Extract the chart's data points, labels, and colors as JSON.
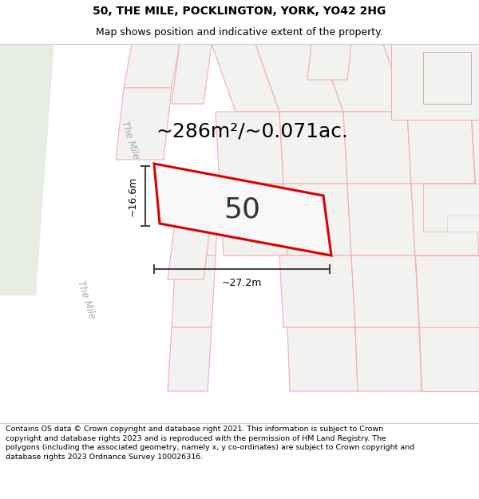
{
  "title_line1": "50, THE MILE, POCKLINGTON, YORK, YO42 2HG",
  "title_line2": "Map shows position and indicative extent of the property.",
  "area_text": "~286m²/~0.071ac.",
  "property_number": "50",
  "dim_width": "~27.2m",
  "dim_height": "~16.6m",
  "road_label_top": "The Mile",
  "road_label_bottom": "The Mile",
  "footer_text": "Contains OS data © Crown copyright and database right 2021. This information is subject to Crown copyright and database rights 2023 and is reproduced with the permission of HM Land Registry. The polygons (including the associated geometry, namely x, y co-ordinates) are subject to Crown copyright and database rights 2023 Ordnance Survey 100026316.",
  "bg_color": "#ffffff",
  "map_bg": "#f0f0ee",
  "road_color": "#ffffff",
  "plot_outline_color": "#f0b0b0",
  "highlight_color": "#dd0000",
  "highlight_fill": "#f8f8f8",
  "green_area_color": "#e8ede4",
  "footer_fontsize": 6.8,
  "title_fontsize": 10.0,
  "subtitle_fontsize": 9.0,
  "area_fontsize": 18,
  "prop_num_fontsize": 26,
  "dim_fontsize": 9,
  "road_label_fontsize": 8.5,
  "road_label_color": "#aaaaaa",
  "separator_line_color": "#cccccc",
  "dim_line_color": "#444444"
}
